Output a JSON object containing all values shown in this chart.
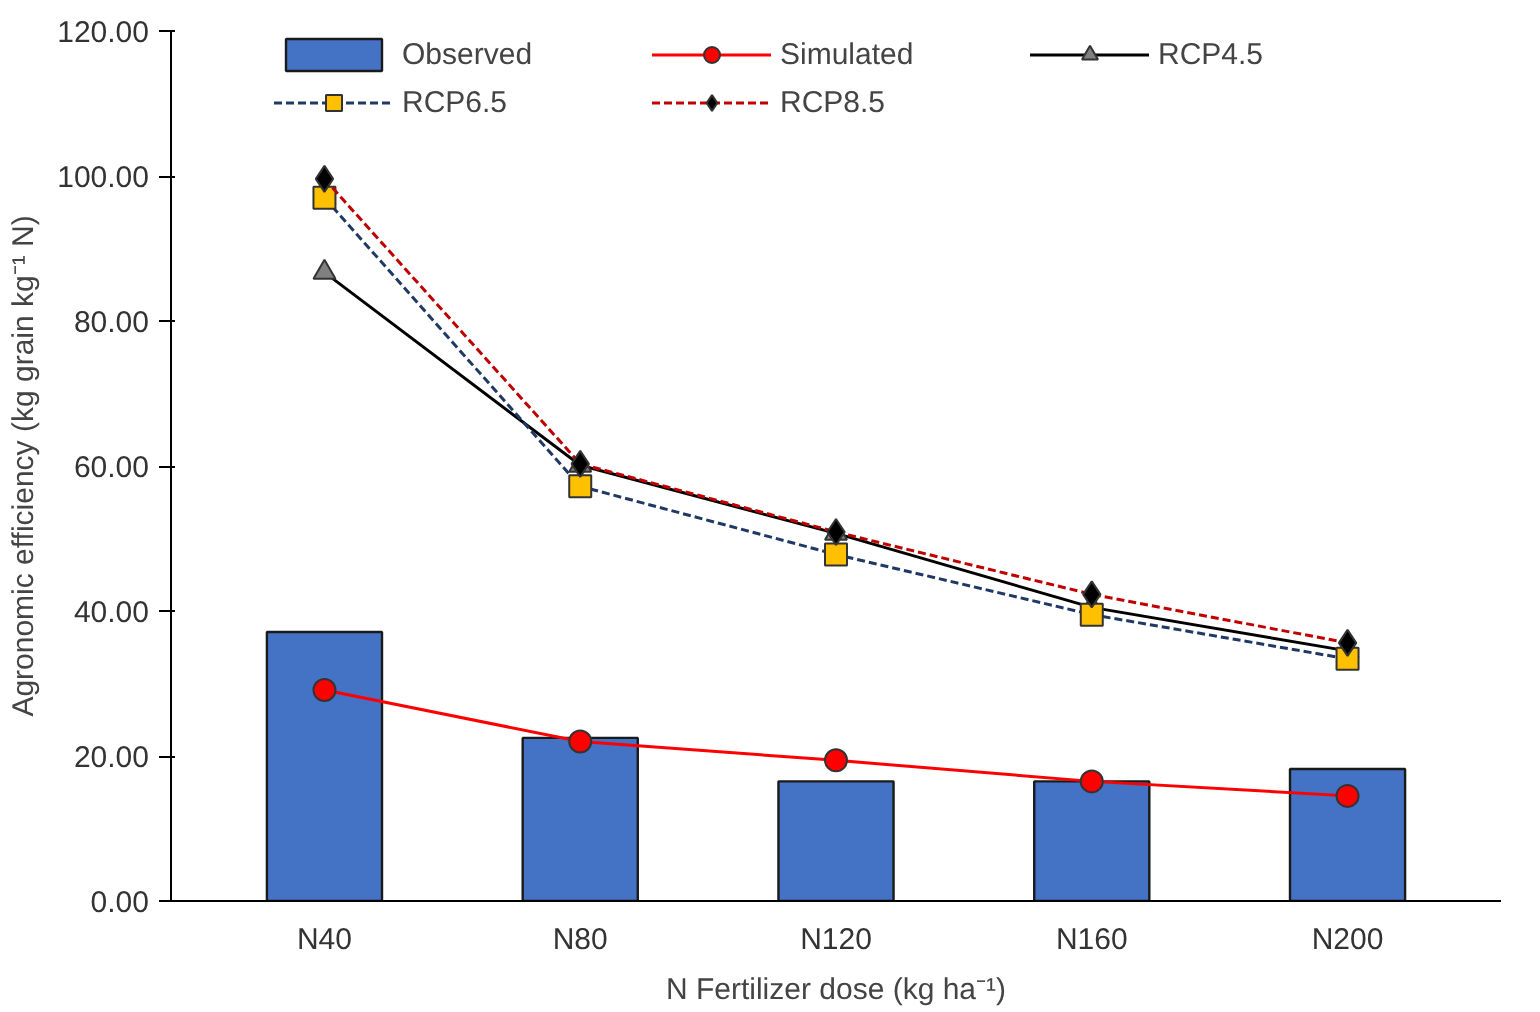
{
  "chart_data": {
    "type": "bar",
    "xlabel": "N Fertilizer dose (kg ha⁻¹)",
    "ylabel": "Agronomic efficiency (kg grain kg⁻¹ N)",
    "categories": [
      "N40",
      "N80",
      "N120",
      "N160",
      "N200"
    ],
    "ylim": [
      0,
      120
    ],
    "yticks": [
      {
        "value": 0,
        "label": "0.00"
      },
      {
        "value": 20,
        "label": "20.00"
      },
      {
        "value": 40,
        "label": "40.00"
      },
      {
        "value": 60,
        "label": "60.00"
      },
      {
        "value": 80,
        "label": "80.00"
      },
      {
        "value": 100,
        "label": "100.00"
      },
      {
        "value": 120,
        "label": "120.00"
      }
    ],
    "grid": false,
    "legend": "top",
    "series": [
      {
        "name": "Observed",
        "color": "#4472c4",
        "values": [
          37.1,
          22.5,
          16.5,
          16.5,
          18.2
        ]
      },
      {
        "name": "Simulated",
        "type": "line",
        "color": "#ff0000",
        "marker": "circle",
        "line_style": "solid",
        "colors": [
          "#ff0000",
          "#ff0000",
          "#ff0000",
          "#ff0000",
          "#ff0000"
        ],
        "values": [
          29.1,
          22.0,
          19.4,
          16.5,
          14.5
        ]
      },
      {
        "name": "RCP4.5",
        "type": "line",
        "color": "#000000",
        "marker": "triangle",
        "line_style": "solid",
        "colors": [
          "#808080",
          "#808080",
          "#808080",
          "#808080",
          "#808080"
        ],
        "values": [
          86.7,
          60.1,
          50.7,
          40.5,
          34.5
        ]
      },
      {
        "name": "RCP6.5",
        "type": "line",
        "color": "#1f3864",
        "marker": "square",
        "line_style": "dashed",
        "colors": [
          "#ffc000",
          "#ffc000",
          "#ffc000",
          "#ffc000",
          "#ffc000"
        ],
        "values": [
          97.0,
          57.2,
          47.8,
          39.5,
          33.4
        ]
      },
      {
        "name": "RCP8.5",
        "type": "line",
        "color": "#c00000",
        "marker": "diamond",
        "line_style": "dashed",
        "colors": [
          "#000000",
          "#000000",
          "#000000",
          "#000000",
          "#000000"
        ],
        "values": [
          99.6,
          60.3,
          50.9,
          42.3,
          35.6
        ]
      }
    ]
  }
}
